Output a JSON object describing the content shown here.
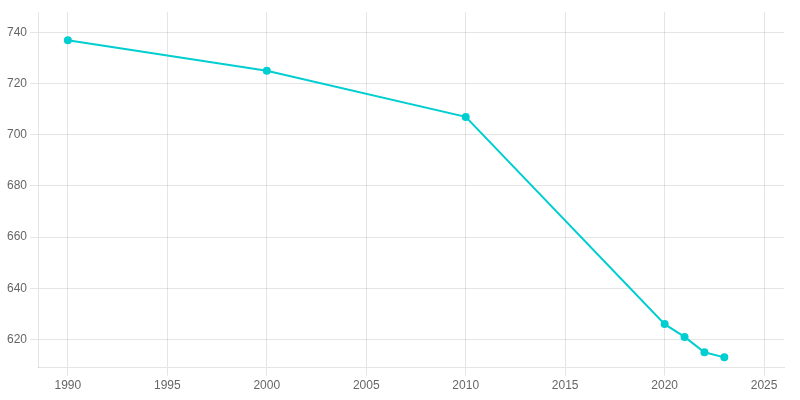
{
  "chart_data": {
    "type": "line",
    "x": [
      1990,
      2000,
      2010,
      2020,
      2021,
      2022,
      2023
    ],
    "values": [
      737,
      725,
      707,
      626,
      621,
      615,
      613
    ],
    "color": "#00CED1",
    "marker": "circle",
    "xlim": [
      1988.5,
      2026
    ],
    "ylim": [
      609,
      748
    ],
    "xticks": [
      1990,
      1995,
      2000,
      2005,
      2010,
      2015,
      2020,
      2025
    ],
    "yticks": [
      620,
      640,
      660,
      680,
      700,
      720,
      740
    ],
    "grid": true
  }
}
